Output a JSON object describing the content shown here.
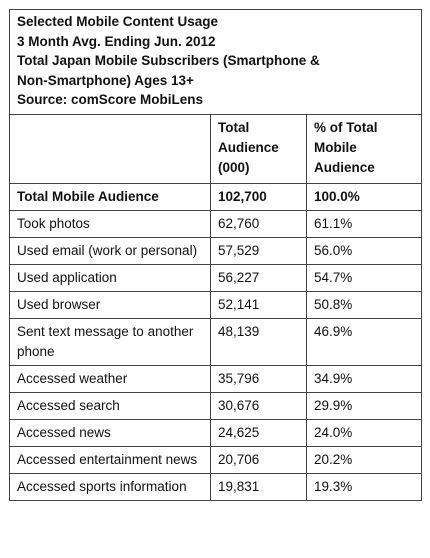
{
  "title_lines": [
    "Selected Mobile Content Usage",
    "3 Month Avg. Ending Jun. 2012",
    "Total Japan Mobile Subscribers (Smartphone &",
    "Non-Smartphone) Ages 13+",
    "Source: comScore MobiLens"
  ],
  "columns": {
    "label": "",
    "audience": "Total Audience (000)",
    "pct": "% of Total Mobile Audience"
  },
  "total_row": {
    "label": "Total Mobile Audience",
    "audience": "102,700",
    "pct": "100.0%"
  },
  "rows": [
    {
      "label": "Took photos",
      "audience": "62,760",
      "pct": "61.1%"
    },
    {
      "label": "Used email (work or personal)",
      "audience": "57,529",
      "pct": "56.0%"
    },
    {
      "label": "Used application",
      "audience": "56,227",
      "pct": "54.7%"
    },
    {
      "label": "Used browser",
      "audience": "52,141",
      "pct": "50.8%"
    },
    {
      "label": "Sent text message to another phone",
      "audience": "48,139",
      "pct": "46.9%"
    },
    {
      "label": "Accessed weather",
      "audience": "35,796",
      "pct": "34.9%"
    },
    {
      "label": "Accessed search",
      "audience": "30,676",
      "pct": "29.9%"
    },
    {
      "label": "Accessed news",
      "audience": "24,625",
      "pct": "24.0%"
    },
    {
      "label": "Accessed entertainment news",
      "audience": "20,706",
      "pct": "20.2%"
    },
    {
      "label": "Accessed sports information",
      "audience": "19,831",
      "pct": "19.3%"
    }
  ]
}
